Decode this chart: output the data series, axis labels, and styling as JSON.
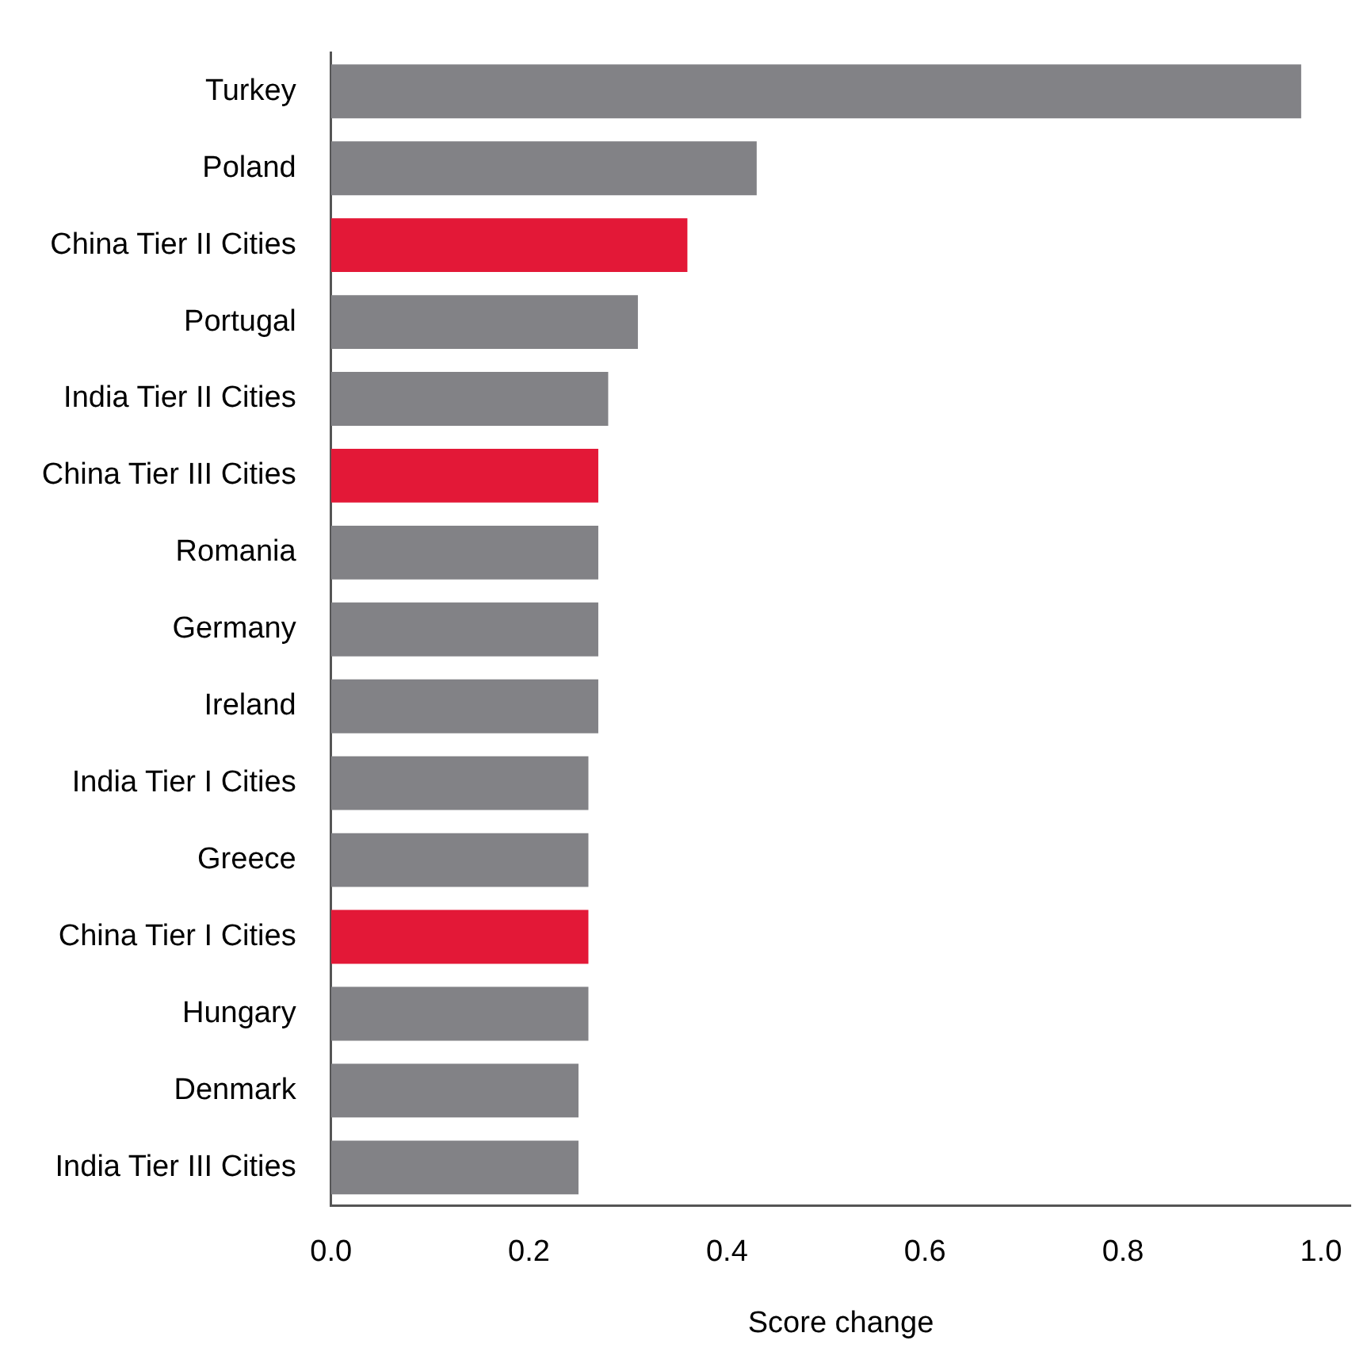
{
  "chart_data": {
    "type": "bar",
    "orientation": "horizontal",
    "xlabel": "Score change",
    "categories": [
      "Turkey",
      "Poland",
      "China Tier II Cities",
      "Portugal",
      "India Tier II Cities",
      "China Tier III Cities",
      "Romania",
      "Germany",
      "Ireland",
      "India Tier I Cities",
      "Greece",
      "China Tier I Cities",
      "Hungary",
      "Denmark",
      "India Tier III Cities"
    ],
    "values": [
      0.98,
      0.43,
      0.36,
      0.31,
      0.28,
      0.27,
      0.27,
      0.27,
      0.27,
      0.26,
      0.26,
      0.26,
      0.26,
      0.25,
      0.25
    ],
    "colors": [
      "#828286",
      "#828286",
      "#e31837",
      "#828286",
      "#828286",
      "#e31837",
      "#828286",
      "#828286",
      "#828286",
      "#828286",
      "#828286",
      "#e31837",
      "#828286",
      "#828286",
      "#828286"
    ],
    "xlim": [
      0,
      1.03
    ],
    "xticks": [
      {
        "value": 0,
        "label": "0.0"
      },
      {
        "value": 0.2,
        "label": "0.2"
      },
      {
        "value": 0.4,
        "label": "0.4"
      },
      {
        "value": 0.6,
        "label": "0.6"
      },
      {
        "value": 0.8,
        "label": "0.8"
      },
      {
        "value": 1,
        "label": "1.0"
      }
    ],
    "grid": false,
    "legend": false
  }
}
